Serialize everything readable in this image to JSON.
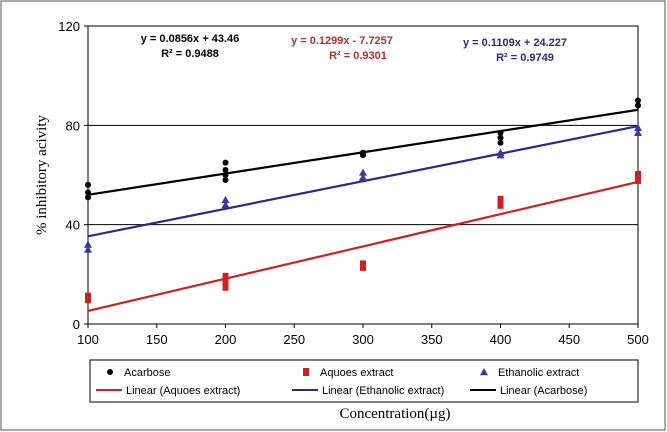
{
  "chart_data": {
    "type": "scatter",
    "xlabel": "Concentration(µg)",
    "ylabel": "% inhibitory acivity",
    "xlim": [
      100,
      500
    ],
    "ylim": [
      0,
      120
    ],
    "x_ticks": [
      100,
      150,
      200,
      250,
      300,
      350,
      400,
      450,
      500
    ],
    "y_ticks": [
      0,
      40,
      80,
      120
    ],
    "horizontal_gridlines": [
      40,
      80
    ],
    "series": [
      {
        "name": "Acarbose",
        "marker": "circle",
        "color": "#000000",
        "x": [
          100,
          100,
          100,
          200,
          200,
          200,
          200,
          300,
          300,
          400,
          400,
          400,
          500,
          500
        ],
        "y": [
          51,
          53,
          56,
          58,
          60,
          62,
          65,
          68,
          69,
          73,
          75,
          77,
          88,
          90
        ]
      },
      {
        "name": "Aquoes extract",
        "marker": "square",
        "color": "#cc2222",
        "x": [
          100,
          100,
          200,
          200,
          200,
          300,
          300,
          400,
          400,
          500,
          500
        ],
        "y": [
          10,
          11,
          15,
          17,
          19,
          23,
          24,
          48,
          50,
          58,
          60
        ],
        "size_note": ""
      },
      {
        "name": "Ethanolic extract",
        "marker": "triangle",
        "color": "#3a3a9a",
        "x": [
          100,
          100,
          200,
          200,
          300,
          300,
          400,
          400,
          500,
          500
        ],
        "y": [
          30,
          32,
          48,
          50,
          59,
          61,
          68,
          69,
          77,
          79
        ]
      }
    ],
    "trendlines": [
      {
        "name": "Linear (Aquoes extract)",
        "slope": 0.1299,
        "intercept": -7.7257,
        "color": "#cc2222",
        "equation": "y = 0.1299x - 7.7257",
        "r2": "R² = 0.9301"
      },
      {
        "name": "Linear (Ethanolic extract)",
        "slope": 0.1109,
        "intercept": 24.227,
        "color": "#2a2a8a",
        "equation": "y = 0.1109x + 24.227",
        "r2": "R² = 0.9749"
      },
      {
        "name": "Linear (Acarbose)",
        "slope": 0.0856,
        "intercept": 43.46,
        "color": "#000000",
        "equation": "y = 0.0856x + 43.46",
        "r2": "R² = 0.9488"
      }
    ],
    "legend_position": "bottom",
    "equation_labels": [
      {
        "series": "Acarbose",
        "equation": "y = 0.0856x + 43.46",
        "r2": "R² = 0.9488",
        "color": "#000000"
      },
      {
        "series": "Aquoes extract",
        "equation": "y = 0.1299x - 7.7257",
        "r2": "R² = 0.9301",
        "color": "#b03030"
      },
      {
        "series": "Ethanolic extract",
        "equation": "y = 0.1109x + 24.227",
        "r2": "R² = 0.9749",
        "color": "#2a2a8a"
      }
    ]
  }
}
